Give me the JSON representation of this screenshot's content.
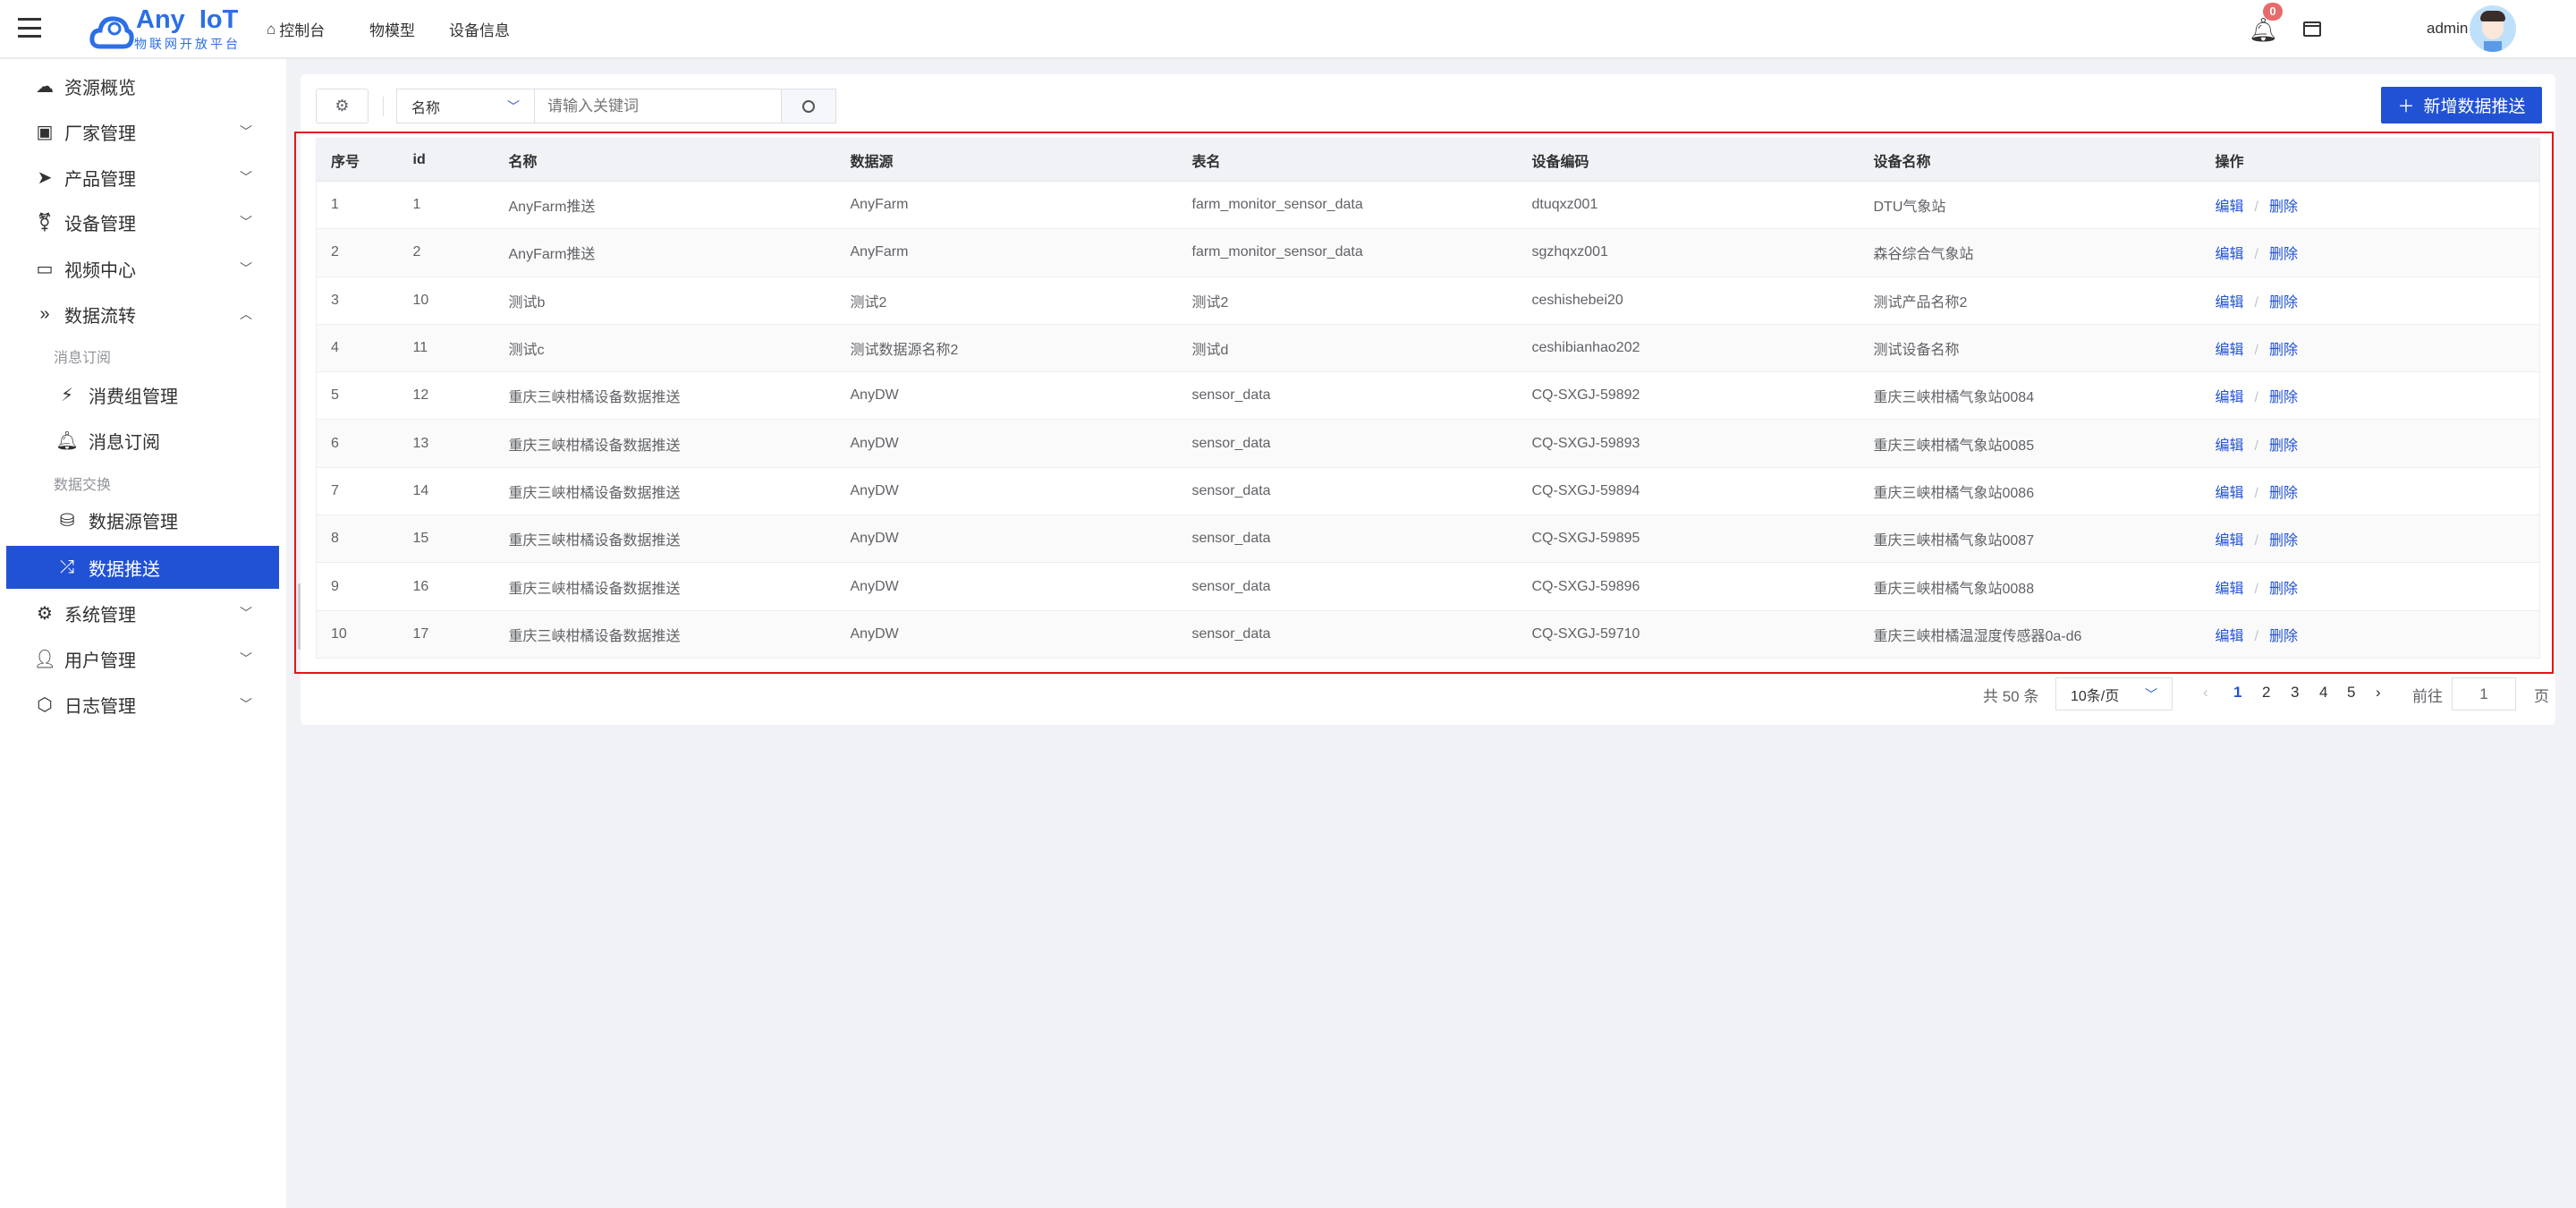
{
  "header": {
    "logo_title": "Any IoT",
    "logo_subtitle": "物联网开放平台",
    "nav": [
      "控制台",
      "物模型",
      "设备信息"
    ],
    "notification_count": "0",
    "username": "admin"
  },
  "sidebar": {
    "items": [
      {
        "label": "资源概览",
        "icon": "cloud-icon"
      },
      {
        "label": "厂家管理",
        "icon": "vendor-icon",
        "chevron": "down"
      },
      {
        "label": "产品管理",
        "icon": "paper-plane-icon",
        "chevron": "down"
      },
      {
        "label": "设备管理",
        "icon": "device-icon",
        "chevron": "down"
      },
      {
        "label": "视频中心",
        "icon": "video-camera-icon",
        "chevron": "down"
      },
      {
        "label": "数据流转",
        "icon": "double-chevron-icon",
        "chevron": "up"
      }
    ],
    "group1": "消息订阅",
    "group1_items": [
      {
        "label": "消费组管理",
        "icon": "lightning-icon"
      },
      {
        "label": "消息订阅",
        "icon": "bell-icon"
      }
    ],
    "group2": "数据交换",
    "group2_items": [
      {
        "label": "数据源管理",
        "icon": "database-icon"
      },
      {
        "label": "数据推送",
        "icon": "shuffle-icon",
        "active": true
      }
    ],
    "bottom_items": [
      {
        "label": "系统管理",
        "icon": "gear-icon"
      },
      {
        "label": "用户管理",
        "icon": "user-icon"
      },
      {
        "label": "日志管理",
        "icon": "hexagon-icon"
      }
    ]
  },
  "toolbar": {
    "search_field": "名称",
    "search_placeholder": "请输入关键词",
    "add_label": "新增数据推送"
  },
  "table": {
    "columns": [
      "序号",
      "id",
      "名称",
      "数据源",
      "表名",
      "设备编码",
      "设备名称",
      "操作"
    ],
    "rows": [
      [
        "1",
        "1",
        "AnyFarm推送",
        "AnyFarm",
        "farm_monitor_sensor_data",
        "dtuqxz001",
        "DTU气象站"
      ],
      [
        "2",
        "2",
        "AnyFarm推送",
        "AnyFarm",
        "farm_monitor_sensor_data",
        "sgzhqxz001",
        "森谷综合气象站"
      ],
      [
        "3",
        "10",
        "测试b",
        "测试2",
        "测试2",
        "ceshishebei20",
        "测试产品名称2"
      ],
      [
        "4",
        "11",
        "测试c",
        "测试数据源名称2",
        "测试d",
        "ceshibianhao202",
        "测试设备名称"
      ],
      [
        "5",
        "12",
        "重庆三峡柑橘设备数据推送",
        "AnyDW",
        "sensor_data",
        "CQ-SXGJ-59892",
        "重庆三峡柑橘气象站0084"
      ],
      [
        "6",
        "13",
        "重庆三峡柑橘设备数据推送",
        "AnyDW",
        "sensor_data",
        "CQ-SXGJ-59893",
        "重庆三峡柑橘气象站0085"
      ],
      [
        "7",
        "14",
        "重庆三峡柑橘设备数据推送",
        "AnyDW",
        "sensor_data",
        "CQ-SXGJ-59894",
        "重庆三峡柑橘气象站0086"
      ],
      [
        "8",
        "15",
        "重庆三峡柑橘设备数据推送",
        "AnyDW",
        "sensor_data",
        "CQ-SXGJ-59895",
        "重庆三峡柑橘气象站0087"
      ],
      [
        "9",
        "16",
        "重庆三峡柑橘设备数据推送",
        "AnyDW",
        "sensor_data",
        "CQ-SXGJ-59896",
        "重庆三峡柑橘气象站0088"
      ],
      [
        "10",
        "17",
        "重庆三峡柑橘设备数据推送",
        "AnyDW",
        "sensor_data",
        "CQ-SXGJ-59710",
        "重庆三峡柑橘温湿度传感器0a-d6"
      ]
    ],
    "edit_label": "编辑",
    "delete_label": "删除"
  },
  "pagination": {
    "total": "共 50 条",
    "page_size": "10条/页",
    "pages": [
      "1",
      "2",
      "3",
      "4",
      "5"
    ],
    "current": "1",
    "goto_label": "前往",
    "goto_value": "1",
    "page_suffix": "页"
  },
  "colors": {
    "accent": "#2152d6",
    "highlight_box": "#e5141b",
    "badge": "#e86a6a"
  }
}
